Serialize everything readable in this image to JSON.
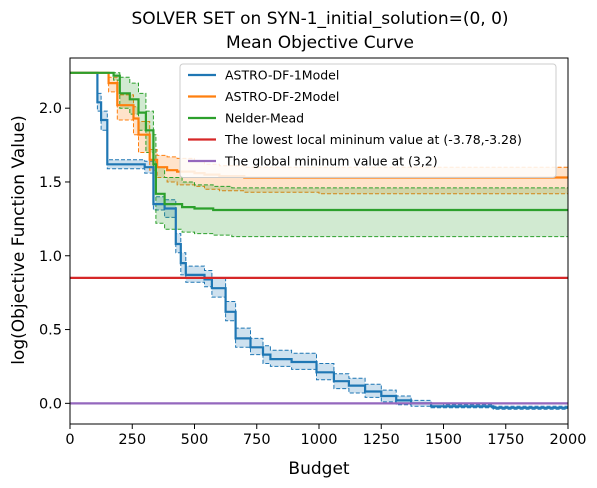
{
  "chart_data": {
    "type": "line",
    "title": "SOLVER SET on SYN-1_initial_solution=(0, 0)",
    "subtitle": "Mean Objective Curve",
    "xlabel": "Budget",
    "ylabel": "log(Objective Function Value)",
    "xlim": [
      0,
      2000
    ],
    "ylim": [
      -0.14,
      2.34
    ],
    "xticks": [
      "0",
      "250",
      "500",
      "750",
      "1000",
      "1250",
      "1500",
      "1750",
      "2000"
    ],
    "yticks": [
      "0.0",
      "0.5",
      "1.0",
      "1.5",
      "2.0"
    ],
    "xtick_values": [
      0,
      250,
      500,
      750,
      1000,
      1250,
      1500,
      1750,
      2000
    ],
    "ytick_values": [
      0.0,
      0.5,
      1.0,
      1.5,
      2.0
    ],
    "grid": false,
    "legend_position": "top-right",
    "series": [
      {
        "name": "ASTRO-DF-1Model",
        "color": "#1f77b4",
        "style": "step",
        "x": [
          0,
          110,
          125,
          150,
          300,
          335,
          380,
          425,
          445,
          465,
          540,
          570,
          625,
          665,
          725,
          775,
          805,
          890,
          990,
          1060,
          1120,
          1185,
          1250,
          1310,
          1370,
          1450,
          1500,
          1700,
          2000
        ],
        "y": [
          2.24,
          2.04,
          1.92,
          1.62,
          1.6,
          1.35,
          1.32,
          1.08,
          0.95,
          0.87,
          0.84,
          0.78,
          0.62,
          0.44,
          0.38,
          0.33,
          0.3,
          0.28,
          0.21,
          0.15,
          0.12,
          0.08,
          0.05,
          0.02,
          0.0,
          -0.02,
          -0.02,
          -0.03,
          -0.03
        ],
        "ci_lower": [
          2.24,
          1.98,
          1.85,
          1.59,
          1.56,
          1.31,
          1.26,
          1.02,
          0.87,
          0.82,
          0.79,
          0.72,
          0.56,
          0.38,
          0.33,
          0.27,
          0.25,
          0.23,
          0.16,
          0.1,
          0.07,
          0.04,
          0.01,
          -0.01,
          -0.02,
          -0.03,
          -0.03,
          -0.04,
          -0.04
        ],
        "ci_upper": [
          2.24,
          2.1,
          1.98,
          1.65,
          1.64,
          1.4,
          1.38,
          1.15,
          1.02,
          0.93,
          0.9,
          0.85,
          0.69,
          0.51,
          0.44,
          0.39,
          0.36,
          0.34,
          0.27,
          0.2,
          0.17,
          0.13,
          0.09,
          0.05,
          0.02,
          0.0,
          -0.01,
          -0.02,
          -0.02
        ]
      },
      {
        "name": "ASTRO-DF-2Model",
        "color": "#ff7f0e",
        "style": "step",
        "x": [
          0,
          155,
          190,
          255,
          275,
          320,
          350,
          390,
          430,
          500,
          540,
          600,
          700,
          800,
          1000,
          2000
        ],
        "y": [
          2.24,
          2.17,
          2.02,
          1.93,
          1.82,
          1.65,
          1.6,
          1.58,
          1.57,
          1.56,
          1.55,
          1.54,
          1.53,
          1.53,
          1.53,
          1.53
        ],
        "ci_lower": [
          2.24,
          2.11,
          1.92,
          1.82,
          1.7,
          1.58,
          1.53,
          1.5,
          1.48,
          1.47,
          1.45,
          1.44,
          1.43,
          1.43,
          1.42,
          1.42
        ],
        "ci_upper": [
          2.24,
          2.21,
          2.09,
          2.01,
          1.91,
          1.72,
          1.68,
          1.67,
          1.66,
          1.64,
          1.62,
          1.61,
          1.6,
          1.6,
          1.6,
          1.6
        ]
      },
      {
        "name": "Nelder-Mead",
        "color": "#2ca02c",
        "style": "step",
        "x": [
          0,
          175,
          200,
          240,
          275,
          305,
          335,
          345,
          380,
          450,
          500,
          575,
          650,
          800,
          1000,
          2000
        ],
        "y": [
          2.24,
          2.22,
          2.1,
          2.06,
          1.97,
          1.85,
          1.62,
          1.42,
          1.35,
          1.33,
          1.32,
          1.31,
          1.31,
          1.31,
          1.31,
          1.31
        ],
        "ci_lower": [
          2.24,
          2.19,
          2.0,
          1.96,
          1.85,
          1.7,
          1.4,
          1.22,
          1.18,
          1.16,
          1.15,
          1.14,
          1.13,
          1.13,
          1.13,
          1.13
        ],
        "ci_upper": [
          2.24,
          2.24,
          2.21,
          2.17,
          2.1,
          1.98,
          1.82,
          1.6,
          1.53,
          1.5,
          1.48,
          1.47,
          1.46,
          1.46,
          1.46,
          1.46
        ]
      },
      {
        "name": "The lowest local mininum value at (-3.78,-3.28)",
        "color": "#d62728",
        "style": "hline",
        "y": 0.85
      },
      {
        "name": "The global mininum value at (3,2)",
        "color": "#9467bd",
        "style": "hline",
        "y": 0.0
      }
    ]
  }
}
